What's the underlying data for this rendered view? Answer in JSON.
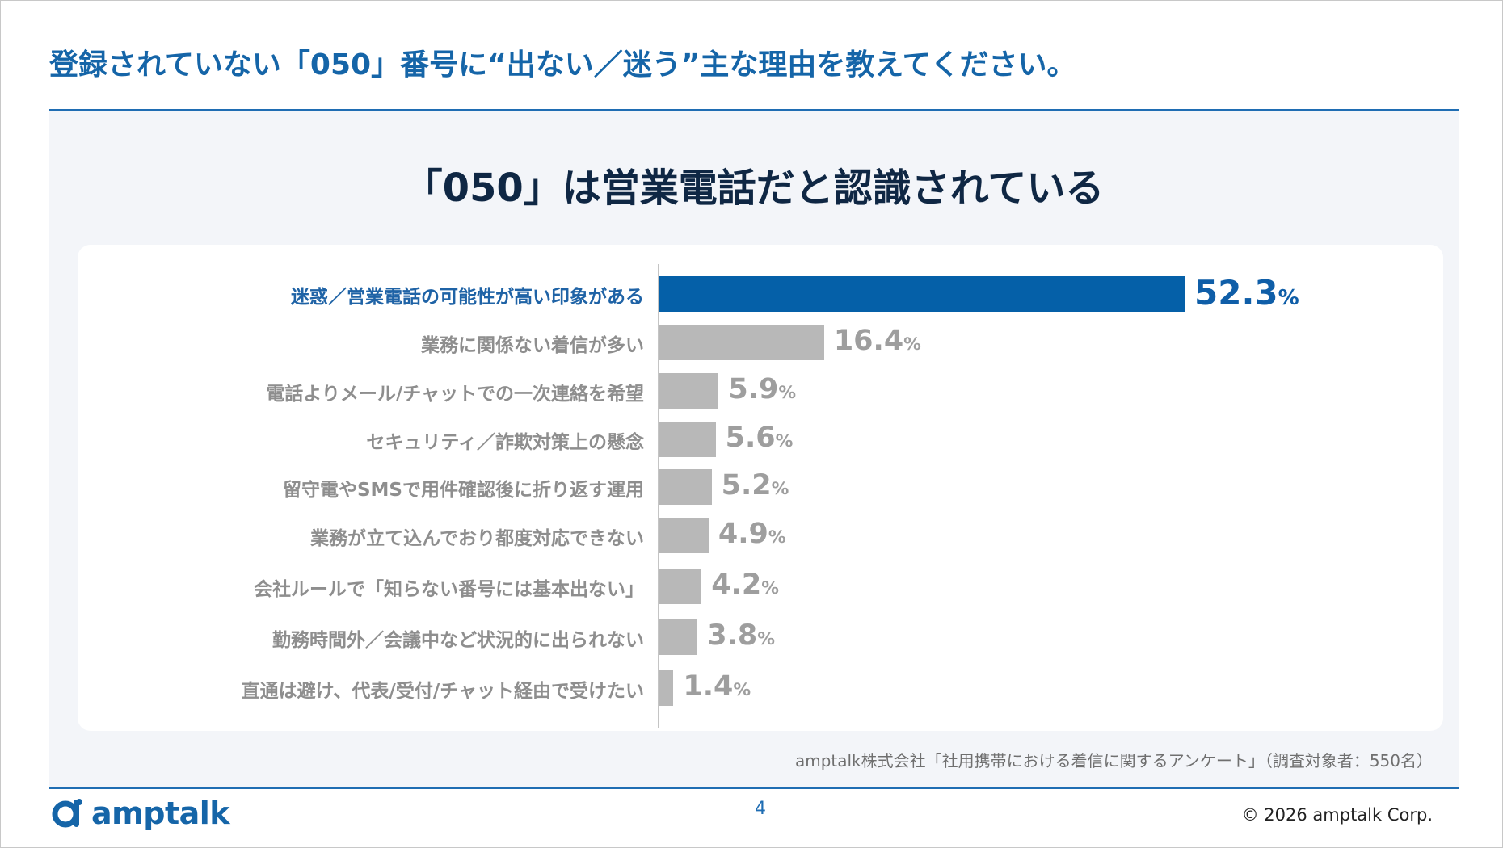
{
  "slide": {
    "title": "登録されていない「050」番号に“出ない／迷う”主な理由を教えてください。",
    "headline": "「050」は営業電話だと認識されている",
    "source": "amptalk株式会社「社用携帯における着信に関するアンケート」（調査対象者：550名）",
    "page_number": "4",
    "copyright": "© 2026 amptalk Corp.",
    "logo_text": "amptalk"
  },
  "colors": {
    "brand_blue": "#1565a8",
    "highlight_bar": "#0560a8",
    "other_bar": "#b8b8b8",
    "headline": "#0f2744",
    "panel_bg": "#f3f5f9"
  },
  "chart_data": {
    "type": "bar",
    "orientation": "horizontal",
    "unit": "%",
    "highlight_index": 0,
    "categories": [
      "迷惑／営業電話の可能性が高い印象がある",
      "業務に関係ない着信が多い",
      "電話よりメール/チャットでの一次連絡を希望",
      "セキュリティ／詐欺対策上の懸念",
      "留守電やSMSで用件確認後に折り返す運用",
      "業務が立て込んでおり都度対応できない",
      "会社ルールで「知らない番号には基本出ない」",
      "勤務時間外／会議中など状況的に出られない",
      "直通は避け、代表/受付/チャット経由で受けたい"
    ],
    "values": [
      52.3,
      16.4,
      5.9,
      5.6,
      5.2,
      4.9,
      4.2,
      3.8,
      1.4
    ],
    "value_labels": [
      "52.3",
      "16.4",
      "5.9",
      "5.6",
      "5.2",
      "4.9",
      "4.2",
      "3.8",
      "1.4"
    ]
  }
}
